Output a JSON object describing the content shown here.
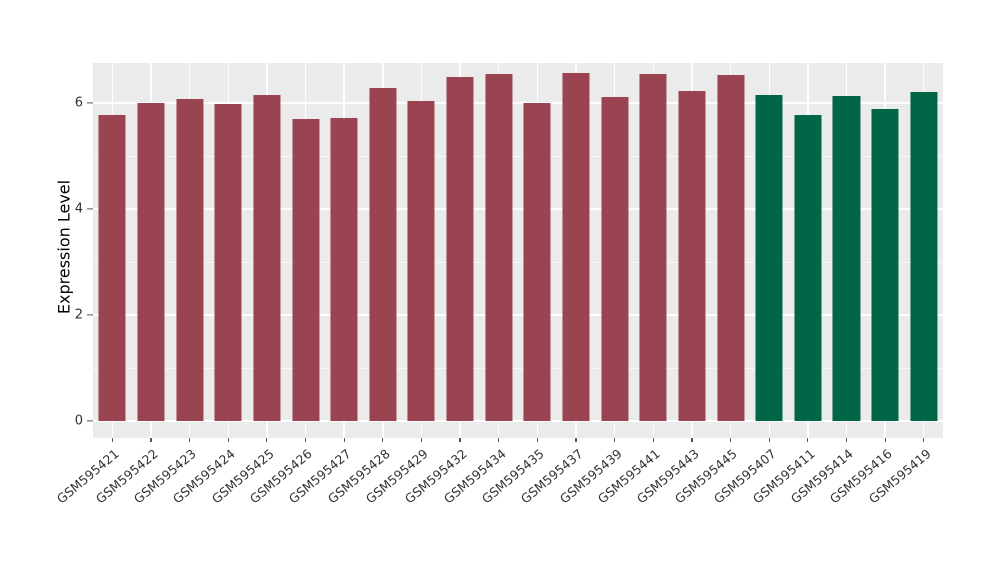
{
  "chart_data": {
    "type": "bar",
    "title": "",
    "xlabel": "",
    "ylabel": "Expression Level",
    "ylim": [
      0,
      6.75
    ],
    "yticks": [
      0,
      2,
      4,
      6
    ],
    "yticks_minor": [
      1,
      3,
      5
    ],
    "grid": "on",
    "legend": "none",
    "panel_background": "#EBEBEB",
    "grid_color": "#FFFFFF",
    "tick_color": "#555555",
    "label_color": "#333333",
    "series": [
      {
        "name": "group-red",
        "color": "#9A4452",
        "categories": [
          "GSM595421",
          "GSM595422",
          "GSM595423",
          "GSM595424",
          "GSM595425",
          "GSM595426",
          "GSM595427",
          "GSM595428",
          "GSM595429",
          "GSM595432",
          "GSM595434",
          "GSM595435",
          "GSM595437",
          "GSM595439",
          "GSM595441",
          "GSM595443",
          "GSM595445"
        ],
        "values": [
          5.78,
          6.0,
          6.08,
          5.99,
          6.16,
          5.7,
          5.72,
          6.28,
          6.04,
          6.49,
          6.55,
          6.0,
          6.56,
          6.12,
          6.54,
          6.23,
          6.53
        ]
      },
      {
        "name": "group-green",
        "color": "#006647",
        "categories": [
          "GSM595407",
          "GSM595411",
          "GSM595414",
          "GSM595416",
          "GSM595419"
        ],
        "values": [
          6.16,
          5.77,
          6.14,
          5.88,
          6.21
        ]
      }
    ]
  }
}
